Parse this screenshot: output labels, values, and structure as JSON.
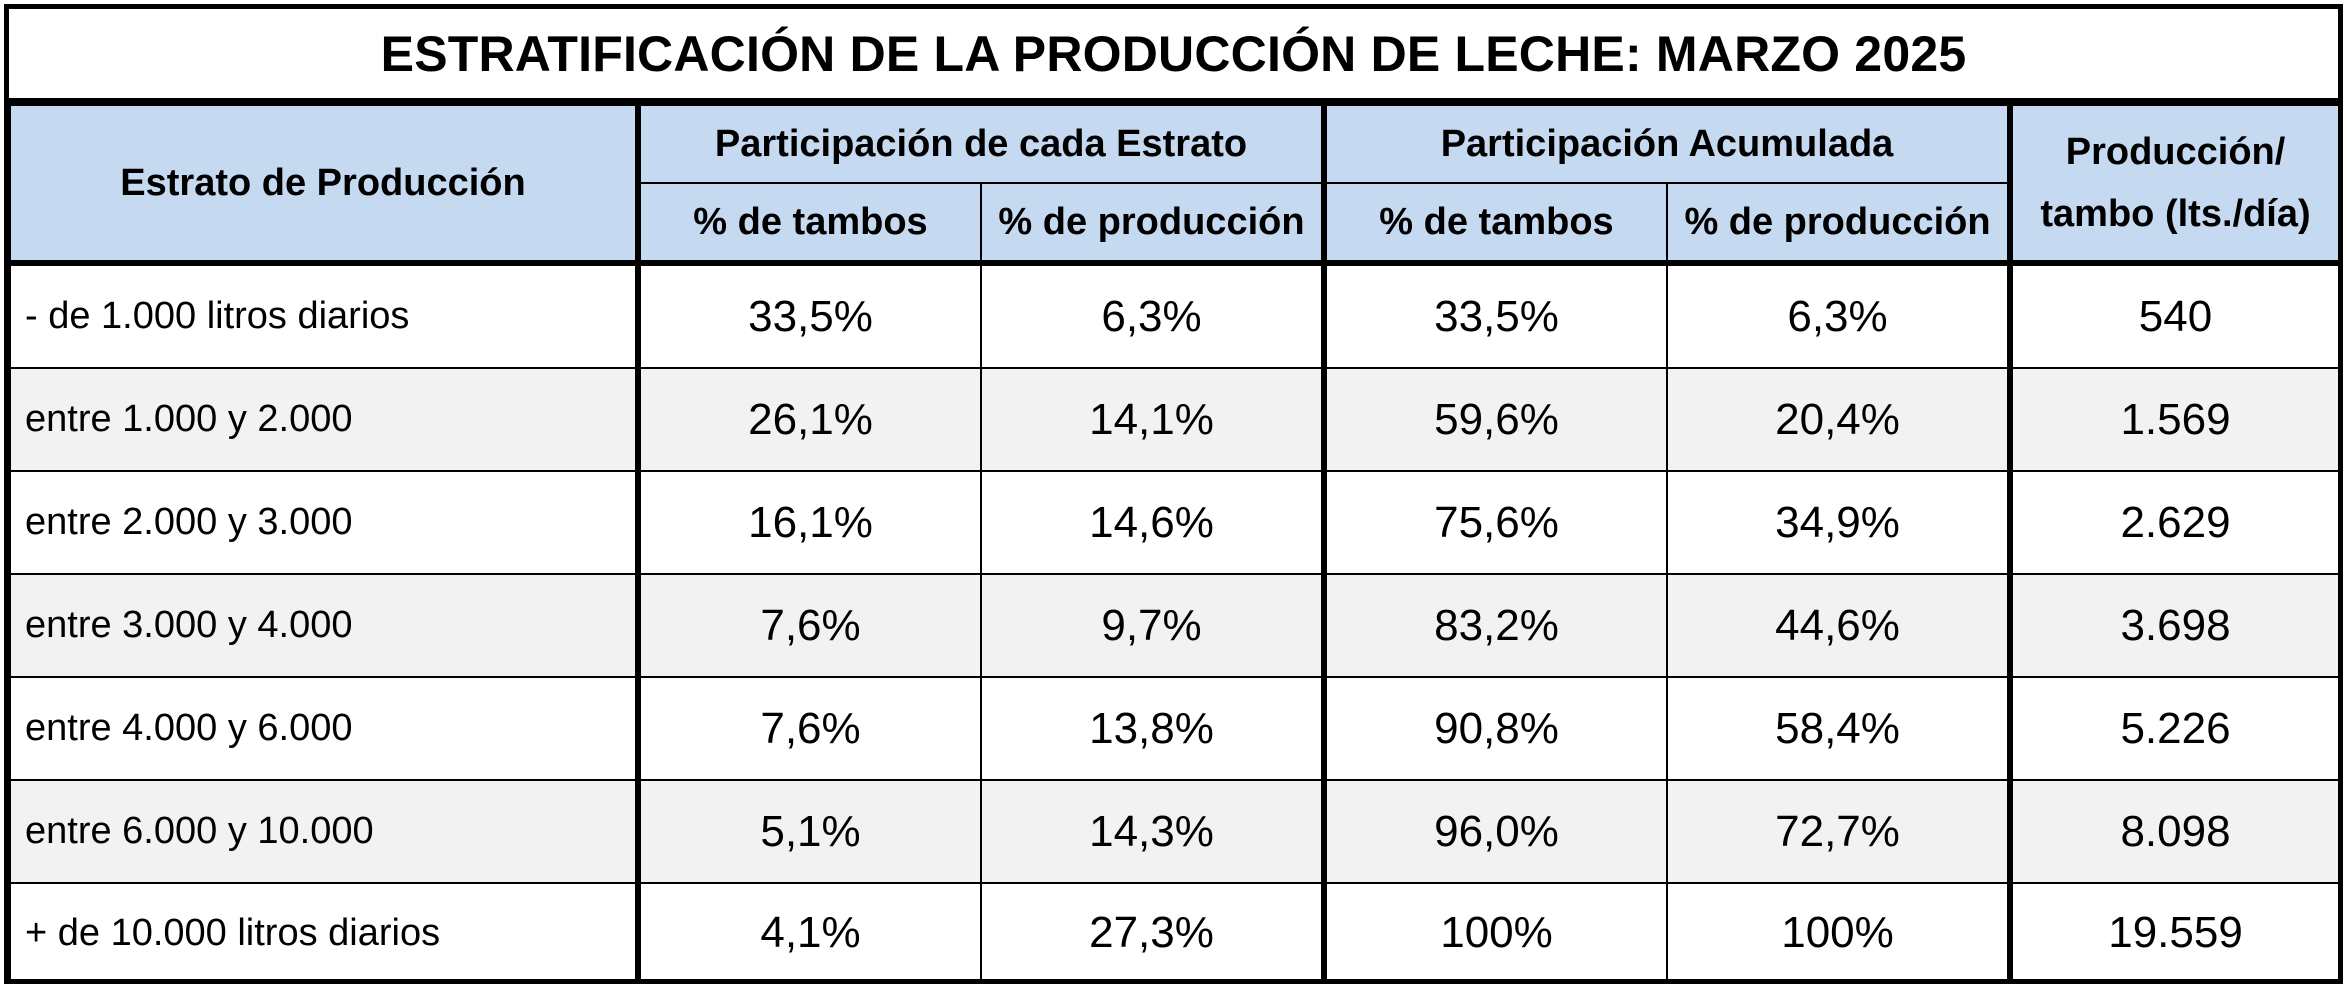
{
  "title": "ESTRATIFICACIÓN DE LA PRODUCCIÓN DE LECHE: MARZO 2025",
  "headers": {
    "estrato": "Estrato de Producción",
    "grupo1": "Participación de cada Estrato",
    "grupo2": "Participación Acumulada",
    "prod_line1": "Producción/",
    "prod_line2": "tambo (lts./día)",
    "sub_tambos": "% de tambos",
    "sub_produccion": "% de producción"
  },
  "rows": [
    {
      "estrato": "- de 1.000 litros diarios",
      "tambos": "33,5%",
      "produccion": "6,3%",
      "acum_tambos": "33,5%",
      "acum_produccion": "6,3%",
      "prod_tambo": "540"
    },
    {
      "estrato": "entre 1.000 y 2.000",
      "tambos": "26,1%",
      "produccion": "14,1%",
      "acum_tambos": "59,6%",
      "acum_produccion": "20,4%",
      "prod_tambo": "1.569"
    },
    {
      "estrato": "entre 2.000 y 3.000",
      "tambos": "16,1%",
      "produccion": "14,6%",
      "acum_tambos": "75,6%",
      "acum_produccion": "34,9%",
      "prod_tambo": "2.629"
    },
    {
      "estrato": "entre 3.000 y 4.000",
      "tambos": "7,6%",
      "produccion": "9,7%",
      "acum_tambos": "83,2%",
      "acum_produccion": "44,6%",
      "prod_tambo": "3.698"
    },
    {
      "estrato": "entre 4.000 y 6.000",
      "tambos": "7,6%",
      "produccion": "13,8%",
      "acum_tambos": "90,8%",
      "acum_produccion": "58,4%",
      "prod_tambo": "5.226"
    },
    {
      "estrato": "entre 6.000 y 10.000",
      "tambos": "5,1%",
      "produccion": "14,3%",
      "acum_tambos": "96,0%",
      "acum_produccion": "72,7%",
      "prod_tambo": "8.098"
    },
    {
      "estrato": "+ de 10.000 litros diarios",
      "tambos": "4,1%",
      "produccion": "27,3%",
      "acum_tambos": "100%",
      "acum_produccion": "100%",
      "prod_tambo": "19.559"
    }
  ],
  "colors": {
    "header_bg": "#c5d9f1",
    "alt_row_bg": "#f2f2f2",
    "border": "#000000"
  }
}
